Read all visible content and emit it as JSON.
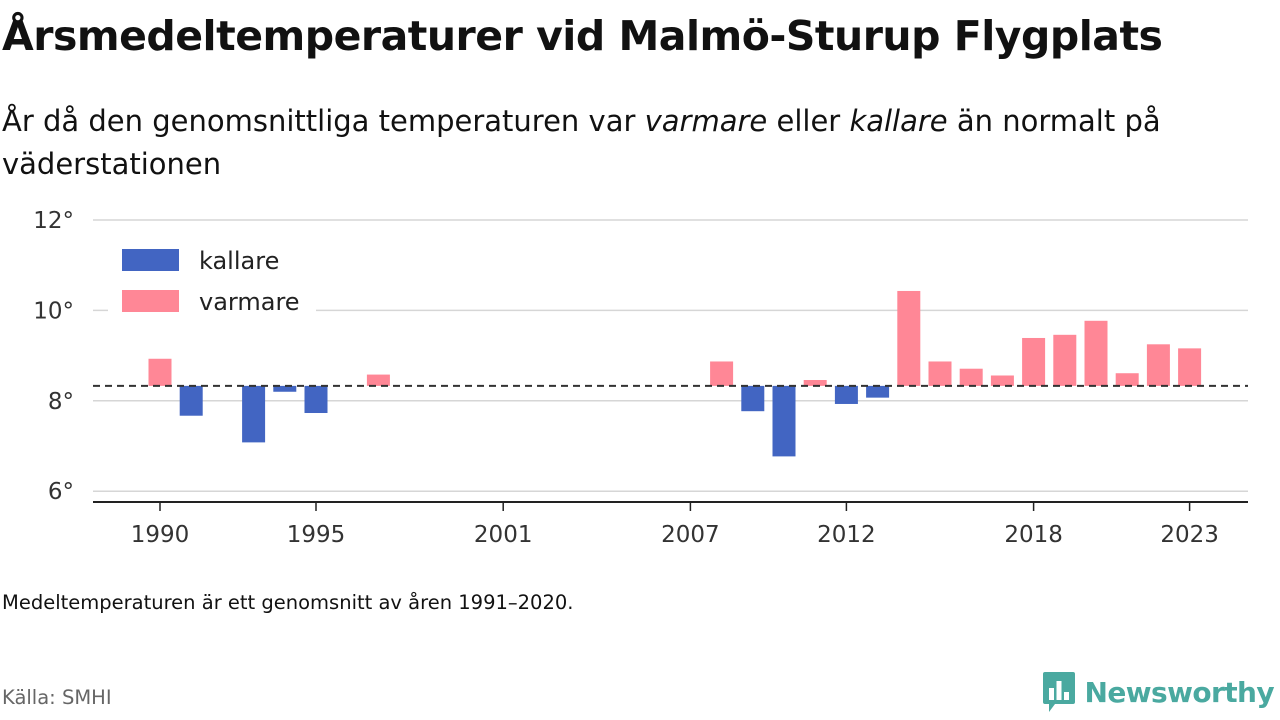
{
  "page": {
    "title": "Årsmedeltemperaturer vid Malmö-Sturup Flygplats",
    "subtitle": {
      "part1": "År då den genomsnittliga temperaturen var ",
      "em1": "varmare",
      "part2": " eller ",
      "em2": "kallare",
      "part3": " än normalt på väderstationen"
    },
    "note": "Medeltemperaturen är ett genomsnitt av åren 1991–2020.",
    "source": "Källa: SMHI",
    "brand": {
      "name": "Newsworthy",
      "icon": "bar-chart-speech-bubble-icon",
      "color": "#4aa9a0"
    }
  },
  "chart_data": {
    "type": "bar",
    "baseline": 8.33,
    "baseline_style": "dashed",
    "ylim": [
      5.8,
      12.3
    ],
    "yticks": [
      6,
      8,
      10,
      12
    ],
    "ytick_labels": [
      "6°",
      "8°",
      "10°",
      "12°"
    ],
    "grid": true,
    "xticks": [
      1990,
      1995,
      2001,
      2007,
      2012,
      2018,
      2023
    ],
    "xtick_labels": [
      "1990",
      "1995",
      "2001",
      "2007",
      "2012",
      "2018",
      "2023"
    ],
    "colors": {
      "colder": "#4265c2",
      "warmer": "#ff8796"
    },
    "legend": {
      "position": "top-left",
      "entries": [
        {
          "label": "kallare",
          "key": "colder"
        },
        {
          "label": "varmare",
          "key": "warmer"
        }
      ]
    },
    "x": [
      1990,
      1991,
      1993,
      1994,
      1995,
      1997,
      2008,
      2009,
      2010,
      2011,
      2012,
      2013,
      2014,
      2015,
      2016,
      2017,
      2018,
      2019,
      2020,
      2021,
      2022,
      2023
    ],
    "values": [
      8.93,
      7.67,
      7.08,
      8.2,
      7.73,
      8.58,
      8.87,
      7.77,
      6.77,
      8.46,
      7.93,
      8.07,
      10.43,
      8.87,
      8.71,
      8.56,
      9.39,
      9.46,
      9.77,
      8.61,
      9.25,
      9.16
    ]
  }
}
